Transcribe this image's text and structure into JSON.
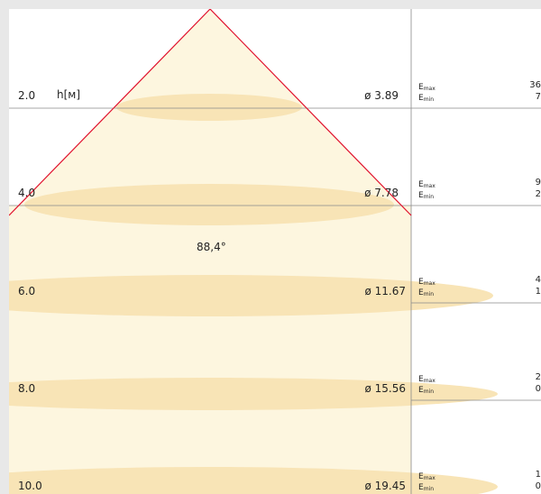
{
  "unit_label": "h[м]",
  "beam_angle": "88,4°",
  "e_max_base": "E",
  "e_max_sub": "max",
  "e_min_base": "E",
  "e_min_sub": "min",
  "colors": {
    "cone_edge": "#e0102c",
    "light_fill": "#fdf6df",
    "ellipse_fill": "#f8e4b6",
    "grid": "#8a8a8a"
  },
  "rows": [
    {
      "height": "2.0",
      "diameter": "ø 3.89",
      "e_max": "36",
      "e_min": "7"
    },
    {
      "height": "4.0",
      "diameter": "ø 7.78",
      "e_max": "9",
      "e_min": "2"
    },
    {
      "height": "6.0",
      "diameter": "ø 11.67",
      "e_max": "4",
      "e_min": "1"
    },
    {
      "height": "8.0",
      "diameter": "ø 15.56",
      "e_max": "2",
      "e_min": "0"
    },
    {
      "height": "10.0",
      "diameter": "ø 19.45",
      "e_max": "1",
      "e_min": "0"
    }
  ]
}
